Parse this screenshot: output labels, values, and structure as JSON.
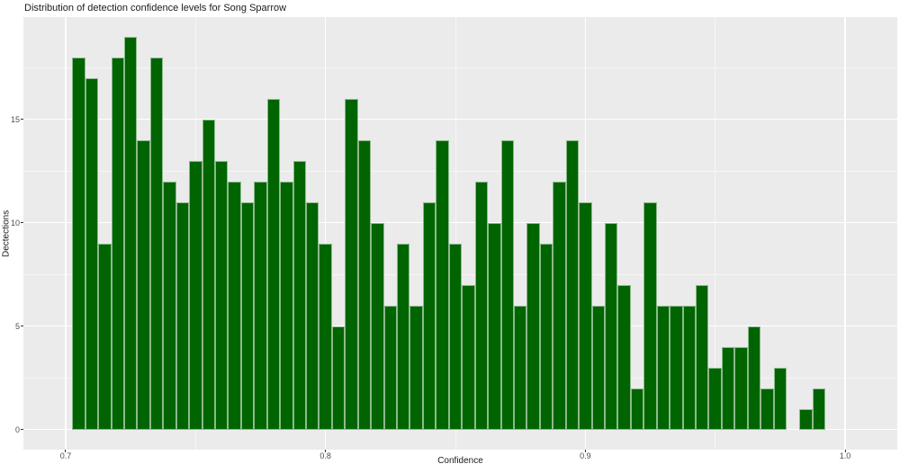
{
  "title": "Distribution of detection confidence levels for Song Sparrow",
  "chart_data": {
    "type": "bar",
    "subtype": "histogram",
    "title": "Distribution of detection confidence levels for Song Sparrow",
    "xlabel": "Confidence",
    "ylabel": "Dectections",
    "bin_start": 0.7025,
    "bin_width": 0.005,
    "values": [
      18,
      17,
      9,
      18,
      19,
      14,
      18,
      12,
      11,
      13,
      15,
      13,
      12,
      11,
      12,
      16,
      12,
      13,
      11,
      9,
      5,
      16,
      14,
      10,
      6,
      9,
      6,
      11,
      14,
      9,
      7,
      12,
      10,
      14,
      6,
      10,
      9,
      12,
      14,
      11,
      6,
      10,
      7,
      2,
      11,
      6,
      6,
      6,
      7,
      3,
      4,
      4,
      5,
      2,
      3,
      0,
      1,
      2
    ],
    "x_tick_values": [
      0.7,
      0.8,
      0.9,
      1.0
    ],
    "x_tick_labels": [
      "0.7",
      "0.8",
      "0.9",
      "1.0"
    ],
    "y_tick_values": [
      0,
      5,
      10,
      15
    ],
    "y_tick_labels": [
      "0",
      "5",
      "10",
      "15"
    ],
    "x_minor_values": [
      0.75,
      0.85,
      0.95
    ],
    "y_minor_values": [
      2.5,
      7.5,
      12.5,
      17.5
    ],
    "xlim": [
      0.68372,
      1.02009
    ],
    "ylim": [
      -0.97,
      19.94
    ],
    "grid": true,
    "legend": "none",
    "colors": {
      "bar_fill": "#006400",
      "bar_edge": "rgba(255,255,255,0.55)",
      "panel_bg": "#ebebeb",
      "grid_major": "#ffffff",
      "grid_minor": "rgba(255,255,255,0.55)",
      "tick_label": "#4d4d4d",
      "axis_title": "#1a1a1a",
      "title": "#1a1a1a",
      "tick_mark": "#333333"
    }
  }
}
